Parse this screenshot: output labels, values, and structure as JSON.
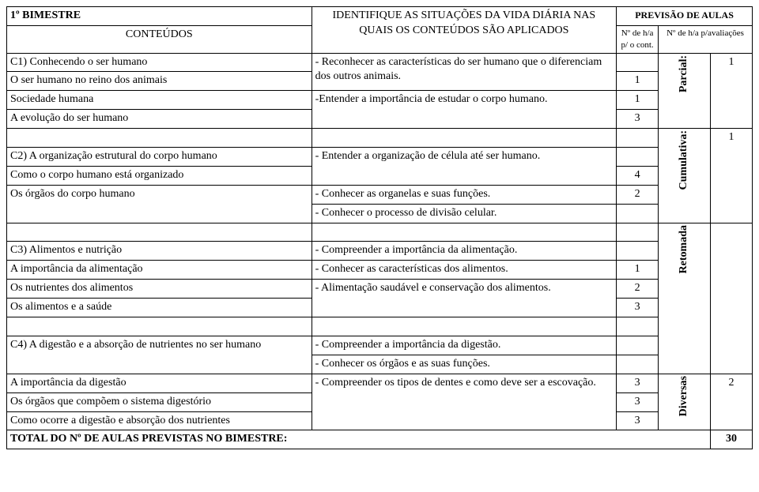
{
  "header": {
    "bimestre": "1º BIMESTRE",
    "previsao": "PREVISÃO DE AULAS",
    "conteudos": "CONTEÚDOS",
    "situacoes": "IDENTIFIQUE AS SITUAÇÕES DA VIDA DIÁRIA NAS QUAIS OS CONTEÚDOS SÃO APLICADOS",
    "nha_cont": "Nº de h/a p/ o cont.",
    "nha_aval": "Nº de h/a p/avaliações"
  },
  "blocks": {
    "c1": {
      "title": "C1) Conhecendo o ser humano",
      "sub1": "O ser humano no reino dos animais",
      "sub2": "Sociedade humana",
      "sub3": "A evolução do ser humano",
      "obj_line1": "- Reconhecer as características do ser humano que o diferenciam dos outros animais.",
      "obj_line2": "-Entender a importância de estudar o corpo humano.",
      "h1": "1",
      "h2": "1",
      "h3": "3",
      "aval_label": "Parcial:",
      "aval_n": "1"
    },
    "c2": {
      "title": "C2) A organização estrutural do corpo humano",
      "sub1": "Como o corpo humano está organizado",
      "sub2": "Os órgãos do corpo humano",
      "obj_line1": "- Entender a organização de célula até ser humano.",
      "obj_line2": "- Conhecer as organelas e suas funções.",
      "obj_line3": "- Conhecer o processo de divisão celular.",
      "h1": "4",
      "h2": "2",
      "aval_label": "Cumulativa:",
      "aval_n": "1"
    },
    "c3": {
      "title": "C3) Alimentos e nutrição",
      "sub1": "A importância da alimentação",
      "sub2": "Os nutrientes dos alimentos",
      "sub3": "Os alimentos e a saúde",
      "obj_line1": "- Compreender a importância da alimentação.",
      "obj_line2": "- Conhecer as características dos alimentos.",
      "obj_line3": "- Alimentação saudável e conservação dos alimentos.",
      "h1": "1",
      "h2": "2",
      "h3": "3",
      "aval_label": "Retomada"
    },
    "c4": {
      "title": "C4) A digestão e a absorção de nutrientes no ser humano",
      "sub1": "A importância da digestão",
      "sub2": "Os órgãos que compõem o sistema digestório",
      "sub3": "Como ocorre a digestão e absorção dos nutrientes",
      "obj_line1": "- Compreender a importância da digestão.",
      "obj_line2": "- Conhecer os órgãos e as suas funções.",
      "obj_line3": "- Compreender os tipos de dentes e como deve ser a escovação.",
      "h1": "3",
      "h2": "3",
      "h3": "3",
      "aval_label": "Diversas",
      "aval_n": "2"
    }
  },
  "total": {
    "label": "TOTAL DO Nº DE AULAS PREVISTAS NO BIMESTRE:",
    "value": "30"
  }
}
